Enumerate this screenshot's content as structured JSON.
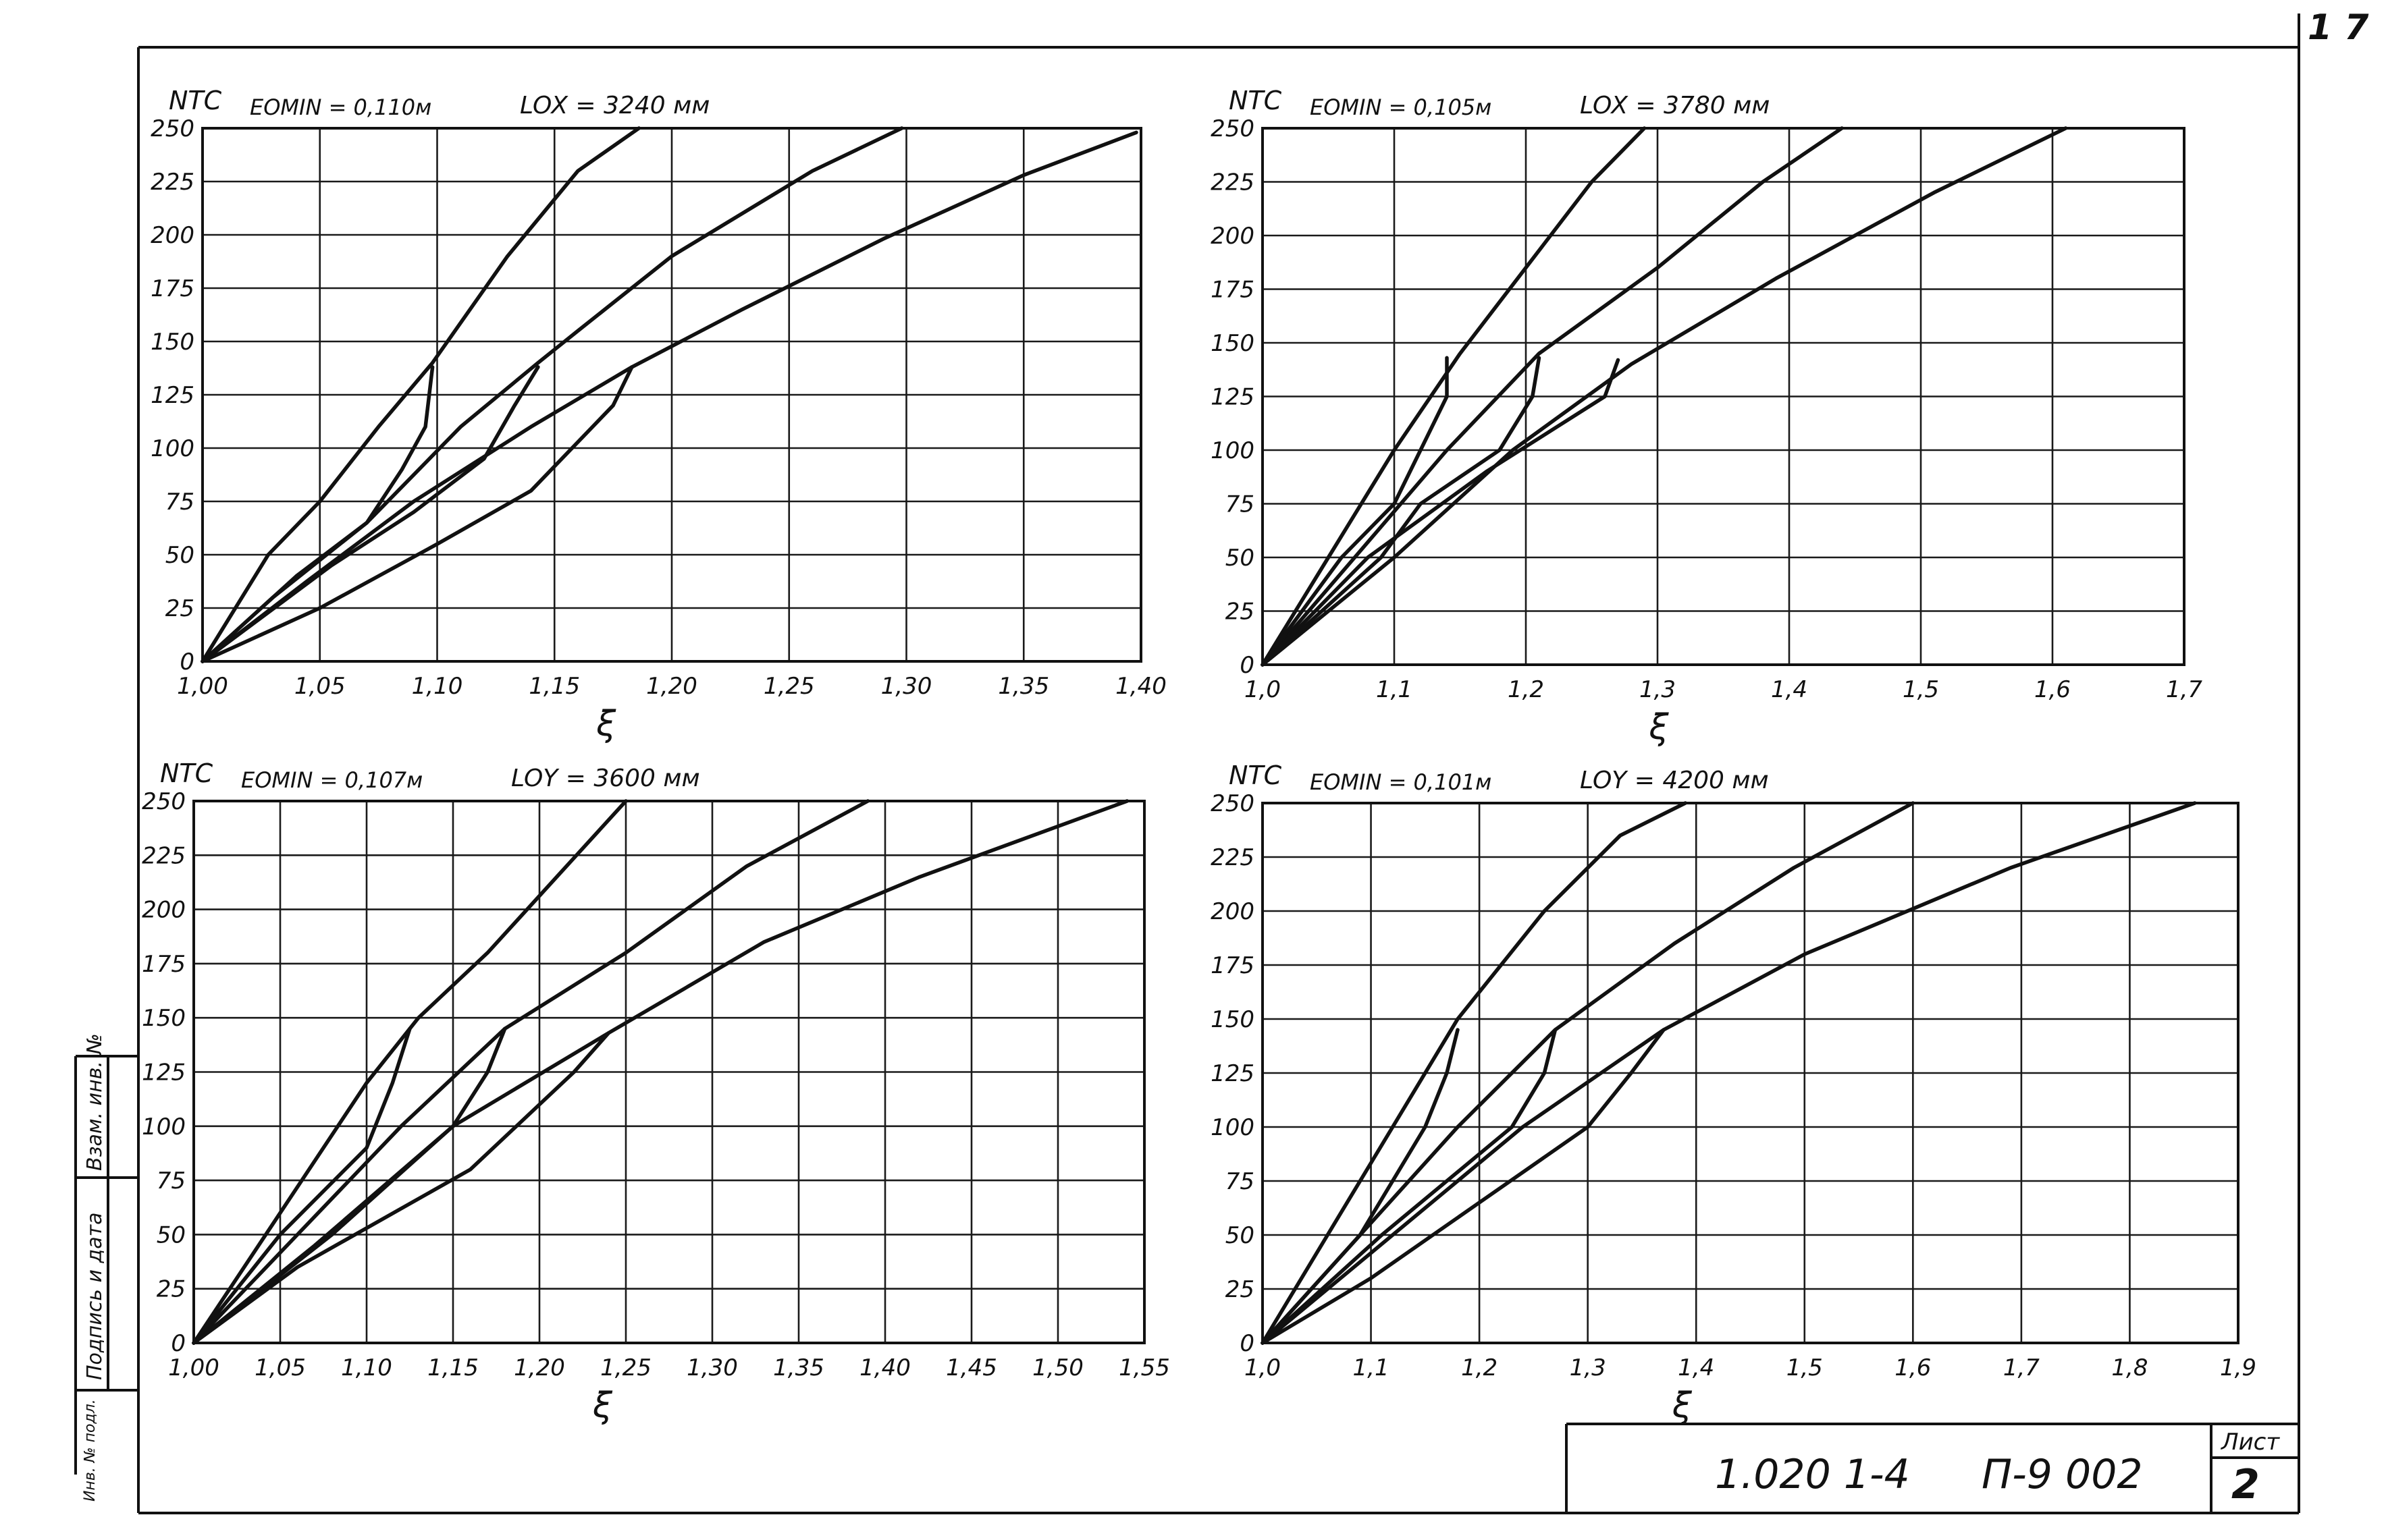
{
  "sheet": {
    "page_number": "1 7",
    "doc_code": "1.020 1-4",
    "doc_series": "П-9 002",
    "sheet_label": "Лист",
    "sheet_number": "2",
    "side_stamp": {
      "cell_top": "Взам. инв. №",
      "cell_mid": "Подпись и дата",
      "cell_bottom": "Инв. № подл."
    }
  },
  "chart_data": [
    {
      "type": "line",
      "y_label": "NTC",
      "x_label": "ξ",
      "param_text": "EOMIN = 0,110м",
      "length_text": "LOX = 3240 мм",
      "xlim": [
        1.0,
        1.4
      ],
      "ylim": [
        0,
        250
      ],
      "x_ticks": [
        1.0,
        1.05,
        1.1,
        1.15,
        1.2,
        1.25,
        1.3,
        1.35,
        1.4
      ],
      "x_tick_labels": [
        "1,00",
        "1,05",
        "1,10",
        "1,15",
        "1,20",
        "1,25",
        "1,30",
        "1,35",
        "1,40"
      ],
      "y_ticks": [
        0,
        25,
        50,
        75,
        100,
        125,
        150,
        175,
        200,
        225,
        250
      ],
      "y_tick_labels": [
        "0",
        "25",
        "50",
        "75",
        "100",
        "125",
        "150",
        "175",
        "200",
        "225",
        "250"
      ],
      "series": [
        {
          "x": [
            1.0,
            1.028,
            1.05,
            1.075,
            1.098,
            1.13,
            1.16,
            1.186
          ],
          "y": [
            0,
            50,
            75,
            110,
            140,
            190,
            230,
            250
          ]
        },
        {
          "x": [
            1.0,
            1.04,
            1.07,
            1.11,
            1.143,
            1.16,
            1.2,
            1.26,
            1.298
          ],
          "y": [
            0,
            40,
            65,
            110,
            140,
            155,
            190,
            230,
            250
          ]
        },
        {
          "x": [
            1.0,
            1.045,
            1.09,
            1.14,
            1.183,
            1.23,
            1.29,
            1.35,
            1.398
          ],
          "y": [
            0,
            38,
            75,
            110,
            138,
            165,
            198,
            228,
            248
          ]
        },
        {
          "x": [
            1.0,
            1.03,
            1.07,
            1.085,
            1.095,
            1.098
          ],
          "y": [
            0,
            30,
            65,
            90,
            110,
            138
          ]
        },
        {
          "x": [
            1.0,
            1.055,
            1.09,
            1.12,
            1.133,
            1.143
          ],
          "y": [
            0,
            45,
            70,
            95,
            120,
            138
          ]
        },
        {
          "x": [
            1.0,
            1.05,
            1.1,
            1.14,
            1.175,
            1.183
          ],
          "y": [
            0,
            25,
            55,
            80,
            120,
            138
          ]
        }
      ]
    },
    {
      "type": "line",
      "y_label": "NTC",
      "x_label": "ξ",
      "param_text": "EOMIN = 0,105м",
      "length_text": "LOX = 3780 мм",
      "xlim": [
        1.0,
        1.7
      ],
      "ylim": [
        0,
        250
      ],
      "x_ticks": [
        1.0,
        1.1,
        1.2,
        1.3,
        1.4,
        1.5,
        1.6,
        1.7
      ],
      "x_tick_labels": [
        "1,0",
        "1,1",
        "1,2",
        "1,3",
        "1,4",
        "1,5",
        "1,6",
        "1,7"
      ],
      "y_ticks": [
        0,
        25,
        50,
        75,
        100,
        125,
        150,
        175,
        200,
        225,
        250
      ],
      "y_tick_labels": [
        "0",
        "25",
        "50",
        "75",
        "100",
        "125",
        "150",
        "175",
        "200",
        "225",
        "250"
      ],
      "series": [
        {
          "x": [
            1.0,
            1.05,
            1.1,
            1.15,
            1.2,
            1.25,
            1.29
          ],
          "y": [
            0,
            50,
            100,
            145,
            185,
            225,
            250
          ]
        },
        {
          "x": [
            1.0,
            1.07,
            1.14,
            1.21,
            1.3,
            1.38,
            1.44
          ],
          "y": [
            0,
            50,
            100,
            145,
            185,
            225,
            250
          ]
        },
        {
          "x": [
            1.0,
            1.1,
            1.19,
            1.28,
            1.39,
            1.51,
            1.61
          ],
          "y": [
            0,
            50,
            100,
            140,
            180,
            220,
            250
          ]
        },
        {
          "x": [
            1.0,
            1.06,
            1.1,
            1.12,
            1.14,
            1.14
          ],
          "y": [
            0,
            50,
            75,
            100,
            125,
            143
          ]
        },
        {
          "x": [
            1.0,
            1.09,
            1.12,
            1.18,
            1.205,
            1.21
          ],
          "y": [
            0,
            50,
            75,
            100,
            125,
            143
          ]
        },
        {
          "x": [
            1.0,
            1.08,
            1.17,
            1.26,
            1.27
          ],
          "y": [
            0,
            50,
            90,
            125,
            142
          ]
        }
      ]
    },
    {
      "type": "line",
      "y_label": "NTC",
      "x_label": "ξ",
      "param_text": "EOMIN = 0,107м",
      "length_text": "LOY = 3600 мм",
      "xlim": [
        1.0,
        1.55
      ],
      "ylim": [
        0,
        250
      ],
      "x_ticks": [
        1.0,
        1.05,
        1.1,
        1.15,
        1.2,
        1.25,
        1.3,
        1.35,
        1.4,
        1.45,
        1.5,
        1.55
      ],
      "x_tick_labels": [
        "1,00",
        "1,05",
        "1,10",
        "1,15",
        "1,20",
        "1,25",
        "1,30",
        "1,35",
        "1,40",
        "1,45",
        "1,50",
        "1,55"
      ],
      "y_ticks": [
        0,
        25,
        50,
        75,
        100,
        125,
        150,
        175,
        200,
        225,
        250
      ],
      "y_tick_labels": [
        "0",
        "25",
        "50",
        "75",
        "100",
        "125",
        "150",
        "175",
        "200",
        "225",
        "250"
      ],
      "series": [
        {
          "x": [
            1.0,
            1.05,
            1.1,
            1.13,
            1.17,
            1.21,
            1.25
          ],
          "y": [
            0,
            60,
            120,
            150,
            180,
            215,
            250
          ]
        },
        {
          "x": [
            1.0,
            1.06,
            1.12,
            1.18,
            1.25,
            1.32,
            1.39
          ],
          "y": [
            0,
            50,
            100,
            145,
            180,
            220,
            250
          ]
        },
        {
          "x": [
            1.0,
            1.07,
            1.15,
            1.24,
            1.33,
            1.42,
            1.54
          ],
          "y": [
            0,
            45,
            100,
            143,
            185,
            215,
            250
          ]
        },
        {
          "x": [
            1.0,
            1.05,
            1.1,
            1.115,
            1.125
          ],
          "y": [
            0,
            50,
            90,
            120,
            145
          ]
        },
        {
          "x": [
            1.0,
            1.08,
            1.15,
            1.17,
            1.18
          ],
          "y": [
            0,
            50,
            100,
            125,
            145
          ]
        },
        {
          "x": [
            1.0,
            1.06,
            1.16,
            1.22,
            1.24
          ],
          "y": [
            0,
            35,
            80,
            125,
            143
          ]
        }
      ]
    },
    {
      "type": "line",
      "y_label": "NTC",
      "x_label": "ξ",
      "param_text": "EOMIN = 0,101м",
      "length_text": "LOY = 4200 мм",
      "xlim": [
        1.0,
        1.9
      ],
      "ylim": [
        0,
        250
      ],
      "x_ticks": [
        1.0,
        1.1,
        1.2,
        1.3,
        1.4,
        1.5,
        1.6,
        1.7,
        1.8,
        1.9
      ],
      "x_tick_labels": [
        "1,0",
        "1,1",
        "1,2",
        "1,3",
        "1,4",
        "1,5",
        "1,6",
        "1,7",
        "1,8",
        "1,9"
      ],
      "y_ticks": [
        0,
        25,
        50,
        75,
        100,
        125,
        150,
        175,
        200,
        225,
        250
      ],
      "y_tick_labels": [
        "0",
        "25",
        "50",
        "75",
        "100",
        "125",
        "150",
        "175",
        "200",
        "225",
        "250"
      ],
      "series": [
        {
          "x": [
            1.0,
            1.06,
            1.12,
            1.18,
            1.26,
            1.33,
            1.39
          ],
          "y": [
            0,
            50,
            100,
            150,
            200,
            235,
            250
          ]
        },
        {
          "x": [
            1.0,
            1.09,
            1.18,
            1.27,
            1.38,
            1.49,
            1.6
          ],
          "y": [
            0,
            50,
            100,
            145,
            185,
            220,
            250
          ]
        },
        {
          "x": [
            1.0,
            1.12,
            1.24,
            1.37,
            1.5,
            1.69,
            1.86
          ],
          "y": [
            0,
            50,
            100,
            145,
            180,
            220,
            250
          ]
        },
        {
          "x": [
            1.0,
            1.09,
            1.15,
            1.17,
            1.18
          ],
          "y": [
            0,
            50,
            100,
            125,
            145
          ]
        },
        {
          "x": [
            1.0,
            1.11,
            1.23,
            1.26,
            1.27
          ],
          "y": [
            0,
            50,
            100,
            125,
            145
          ]
        },
        {
          "x": [
            1.0,
            1.1,
            1.2,
            1.3,
            1.34,
            1.37
          ],
          "y": [
            0,
            30,
            65,
            100,
            125,
            145
          ]
        }
      ]
    }
  ]
}
